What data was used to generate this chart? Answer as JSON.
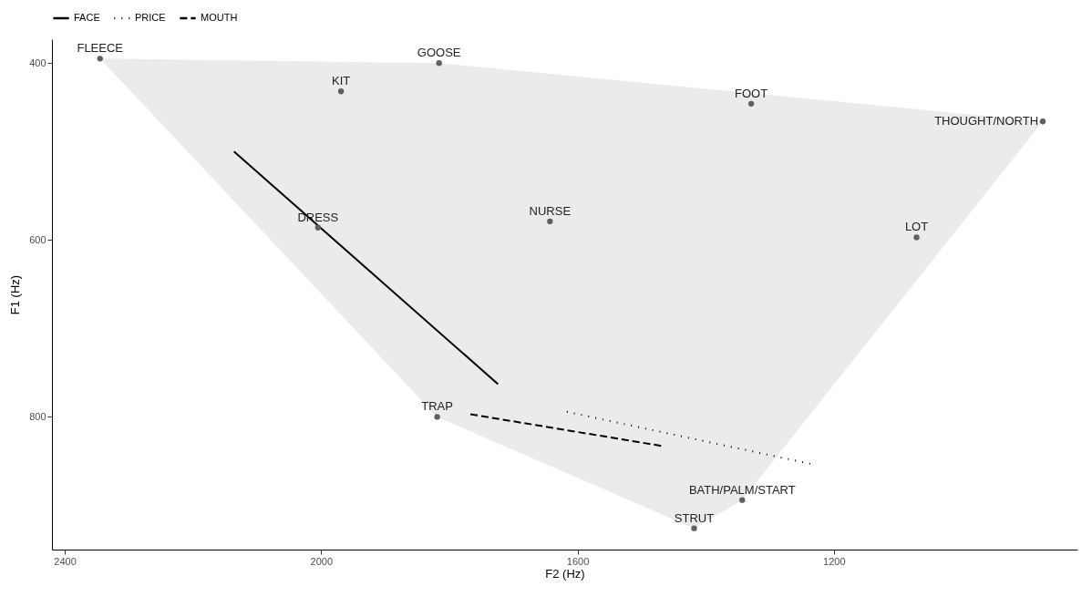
{
  "chart_data": {
    "type": "scatter",
    "xlabel": "F2 (Hz)",
    "ylabel": "F1 (Hz)",
    "xlim": [
      2420,
      820
    ],
    "ylim": [
      950,
      373
    ],
    "xticks": [
      2400,
      2000,
      1600,
      1200
    ],
    "yticks": [
      400,
      600,
      800
    ],
    "grid": false,
    "legend": "top",
    "series": [
      {
        "type": "area",
        "color": "#ebebeb",
        "x": [
          2345,
          1816,
          874,
          1343,
          1418,
          1819
        ],
        "values": [
          395,
          400,
          466,
          894,
          926,
          800
        ]
      },
      {
        "type": "line",
        "name": "FACE",
        "color": "#000000",
        "line_style": "solid",
        "x": [
          1724,
          2136
        ],
        "values": [
          763,
          500
        ]
      },
      {
        "type": "line",
        "name": "PRICE",
        "color": "#000000",
        "line_style": "dotted",
        "x": [
          1237,
          1618
        ],
        "values": [
          853,
          794
        ]
      },
      {
        "type": "line",
        "name": "MOUTH",
        "color": "#000000",
        "line_style": "dashed",
        "x": [
          1767,
          1467
        ],
        "values": [
          797,
          833
        ]
      },
      {
        "color": "#5f5f5f",
        "marker": "circle",
        "x": [
          2345,
          1816,
          1969,
          2005,
          1643,
          1329,
          874,
          1071,
          1819,
          1343,
          1418
        ],
        "values": [
          395,
          400,
          432,
          586,
          579,
          446,
          466,
          597,
          800,
          894,
          926
        ]
      }
    ],
    "annotations": [
      {
        "text": "FLEECE",
        "x": 2345,
        "y": 395
      },
      {
        "text": "GOOSE",
        "x": 1816,
        "y": 400
      },
      {
        "text": "KIT",
        "x": 1969,
        "y": 432
      },
      {
        "text": "DRESS",
        "x": 2005,
        "y": 586
      },
      {
        "text": "NURSE",
        "x": 1643,
        "y": 579
      },
      {
        "text": "FOOT",
        "x": 1329,
        "y": 446
      },
      {
        "text": "THOUGHT/NORTH",
        "x": 874,
        "y": 466
      },
      {
        "text": "LOT",
        "x": 1071,
        "y": 597
      },
      {
        "text": "TRAP",
        "x": 1819,
        "y": 800
      },
      {
        "text": "BATH/PALM/START",
        "x": 1343,
        "y": 894
      },
      {
        "text": "STRUT",
        "x": 1418,
        "y": 926
      }
    ]
  }
}
